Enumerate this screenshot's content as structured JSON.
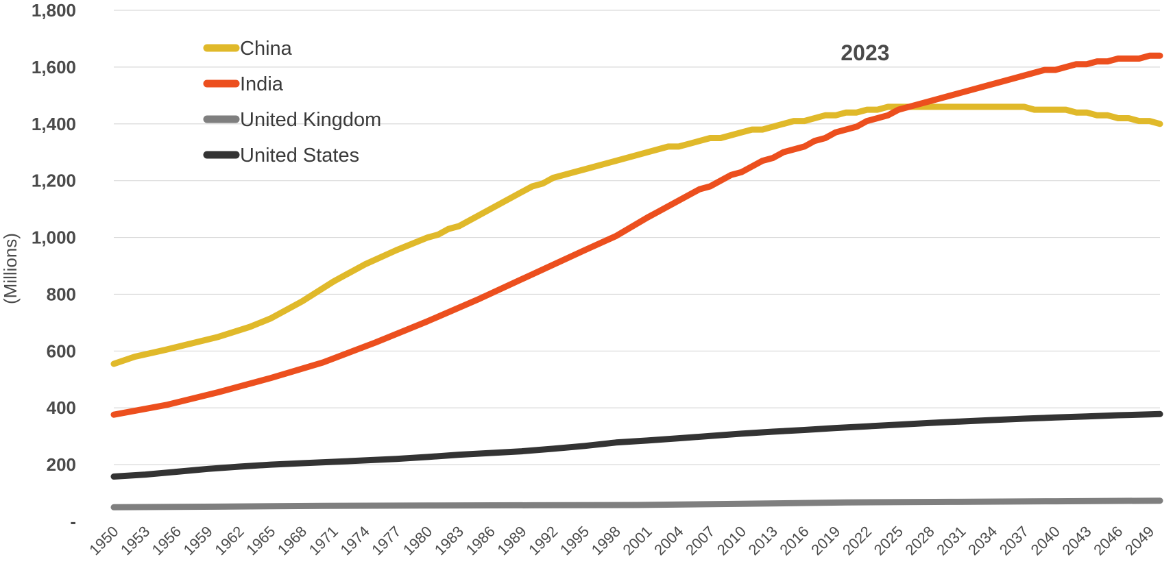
{
  "chart_data": {
    "type": "line",
    "title": "",
    "xlabel": "",
    "ylabel": "(Millions)",
    "ylim": [
      0,
      1800
    ],
    "yticks": [
      0,
      200,
      400,
      600,
      800,
      1000,
      1200,
      1400,
      1600,
      1800
    ],
    "ytick_labels": [
      "-",
      "200",
      "400",
      "600",
      "800",
      "1,000",
      "1,200",
      "1,400",
      "1,600",
      "1,800"
    ],
    "xlim": [
      1950,
      2050
    ],
    "xticks": [
      1950,
      1953,
      1956,
      1959,
      1962,
      1965,
      1968,
      1971,
      1974,
      1977,
      1980,
      1983,
      1986,
      1989,
      1992,
      1995,
      1998,
      2001,
      2004,
      2007,
      2010,
      2013,
      2016,
      2019,
      2022,
      2025,
      2028,
      2031,
      2034,
      2037,
      2040,
      2043,
      2046,
      2049
    ],
    "xtick_labels": [
      "1950",
      "1953",
      "1956",
      "1959",
      "1962",
      "1965",
      "1968",
      "1971",
      "1974",
      "1977",
      "1980",
      "1983",
      "1986",
      "1989",
      "1992",
      "1995",
      "1998",
      "2001",
      "2004",
      "2007",
      "2010",
      "2013",
      "2016",
      "2019",
      "2022",
      "2025",
      "2028",
      "2031",
      "2034",
      "2037",
      "2040",
      "2043",
      "2046",
      "2049"
    ],
    "grid": true,
    "legend_position": "top-left",
    "annotation": {
      "text": "2023",
      "x": 2023,
      "y": 1600
    },
    "series": [
      {
        "name": "China",
        "color": "#E0B92A",
        "points": [
          [
            1950,
            555
          ],
          [
            1952,
            580
          ],
          [
            1955,
            605
          ],
          [
            1960,
            650
          ],
          [
            1963,
            685
          ],
          [
            1965,
            715
          ],
          [
            1968,
            775
          ],
          [
            1971,
            845
          ],
          [
            1974,
            905
          ],
          [
            1977,
            955
          ],
          [
            1980,
            1000
          ],
          [
            1981,
            1010
          ],
          [
            1982,
            1030
          ],
          [
            1983,
            1040
          ],
          [
            1986,
            1100
          ],
          [
            1989,
            1160
          ],
          [
            1990,
            1180
          ],
          [
            1991,
            1190
          ],
          [
            1992,
            1210
          ],
          [
            1995,
            1240
          ],
          [
            1998,
            1270
          ],
          [
            2001,
            1300
          ],
          [
            2003,
            1320
          ],
          [
            2004,
            1320
          ],
          [
            2005,
            1330
          ],
          [
            2007,
            1350
          ],
          [
            2008,
            1350
          ],
          [
            2010,
            1370
          ],
          [
            2011,
            1380
          ],
          [
            2012,
            1380
          ],
          [
            2015,
            1410
          ],
          [
            2016,
            1410
          ],
          [
            2018,
            1430
          ],
          [
            2019,
            1430
          ],
          [
            2020,
            1440
          ],
          [
            2021,
            1440
          ],
          [
            2022,
            1450
          ],
          [
            2023,
            1450
          ],
          [
            2024,
            1460
          ],
          [
            2036,
            1460
          ],
          [
            2037,
            1460
          ],
          [
            2038,
            1450
          ],
          [
            2041,
            1450
          ],
          [
            2042,
            1440
          ],
          [
            2043,
            1440
          ],
          [
            2044,
            1430
          ],
          [
            2045,
            1430
          ],
          [
            2046,
            1420
          ],
          [
            2047,
            1420
          ],
          [
            2048,
            1410
          ],
          [
            2049,
            1410
          ],
          [
            2050,
            1400
          ]
        ]
      },
      {
        "name": "India",
        "color": "#EC4F1E",
        "points": [
          [
            1950,
            376
          ],
          [
            1955,
            410
          ],
          [
            1960,
            455
          ],
          [
            1965,
            505
          ],
          [
            1970,
            560
          ],
          [
            1975,
            630
          ],
          [
            1980,
            705
          ],
          [
            1985,
            785
          ],
          [
            1990,
            870
          ],
          [
            1995,
            955
          ],
          [
            1998,
            1005
          ],
          [
            2001,
            1070
          ],
          [
            2002,
            1090
          ],
          [
            2006,
            1170
          ],
          [
            2007,
            1180
          ],
          [
            2009,
            1220
          ],
          [
            2010,
            1230
          ],
          [
            2012,
            1270
          ],
          [
            2013,
            1280
          ],
          [
            2014,
            1300
          ],
          [
            2016,
            1320
          ],
          [
            2017,
            1340
          ],
          [
            2018,
            1350
          ],
          [
            2019,
            1370
          ],
          [
            2021,
            1390
          ],
          [
            2022,
            1410
          ],
          [
            2024,
            1430
          ],
          [
            2025,
            1450
          ],
          [
            2027,
            1470
          ],
          [
            2031,
            1510
          ],
          [
            2035,
            1550
          ],
          [
            2039,
            1590
          ],
          [
            2040,
            1590
          ],
          [
            2042,
            1610
          ],
          [
            2043,
            1610
          ],
          [
            2044,
            1620
          ],
          [
            2045,
            1620
          ],
          [
            2046,
            1630
          ],
          [
            2048,
            1630
          ],
          [
            2049,
            1640
          ],
          [
            2050,
            1640
          ]
        ]
      },
      {
        "name": "United Kingdom",
        "color": "#7f7f7f",
        "points": [
          [
            1950,
            50
          ],
          [
            1960,
            52
          ],
          [
            1970,
            55
          ],
          [
            1980,
            56
          ],
          [
            1990,
            57
          ],
          [
            2000,
            58
          ],
          [
            2010,
            62
          ],
          [
            2020,
            67
          ],
          [
            2030,
            69
          ],
          [
            2040,
            71
          ],
          [
            2050,
            73
          ]
        ]
      },
      {
        "name": "United States",
        "color": "#333333",
        "points": [
          [
            1950,
            158
          ],
          [
            1953,
            165
          ],
          [
            1956,
            175
          ],
          [
            1959,
            185
          ],
          [
            1962,
            193
          ],
          [
            1965,
            200
          ],
          [
            1968,
            205
          ],
          [
            1971,
            210
          ],
          [
            1974,
            215
          ],
          [
            1977,
            220
          ],
          [
            1980,
            227
          ],
          [
            1983,
            235
          ],
          [
            1986,
            241
          ],
          [
            1989,
            247
          ],
          [
            1992,
            256
          ],
          [
            1995,
            266
          ],
          [
            1998,
            278
          ],
          [
            2001,
            285
          ],
          [
            2004,
            293
          ],
          [
            2007,
            301
          ],
          [
            2010,
            309
          ],
          [
            2013,
            316
          ],
          [
            2016,
            322
          ],
          [
            2019,
            329
          ],
          [
            2022,
            335
          ],
          [
            2025,
            341
          ],
          [
            2028,
            347
          ],
          [
            2031,
            352
          ],
          [
            2034,
            357
          ],
          [
            2037,
            362
          ],
          [
            2040,
            366
          ],
          [
            2043,
            370
          ],
          [
            2046,
            374
          ],
          [
            2049,
            377
          ],
          [
            2050,
            378
          ]
        ]
      }
    ]
  }
}
